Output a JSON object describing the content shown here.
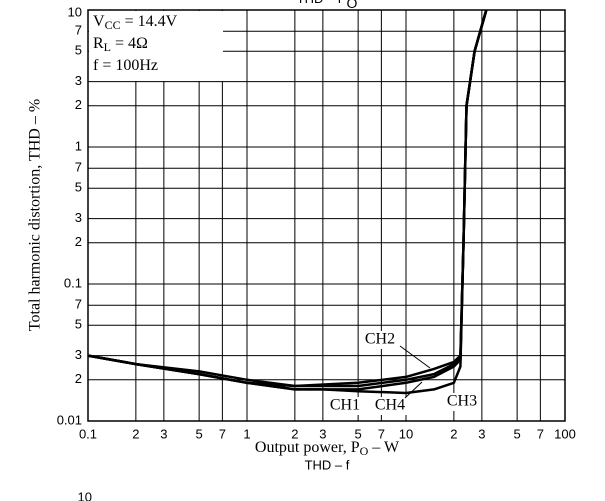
{
  "chart_data": [
    {
      "type": "line",
      "title": {
        "main": "THD – P",
        "sub": "O"
      },
      "xlabel": {
        "main": "Output power, P",
        "sub": "O",
        "rest": " – W"
      },
      "ylabel": "Total harmonic distortion, THD  –  %",
      "log_x": true,
      "log_y": true,
      "grid": true,
      "xlim": [
        0.1,
        100
      ],
      "ylim": [
        0.01,
        10
      ],
      "xticks": [
        0.1,
        {
          "value": 0.2,
          "label": "2"
        },
        {
          "value": 0.3,
          "label": "3"
        },
        {
          "value": 0.5,
          "label": "5"
        },
        {
          "value": 0.7,
          "label": "7"
        },
        1,
        {
          "value": 2,
          "label": "2"
        },
        {
          "value": 3,
          "label": "3"
        },
        {
          "value": 5,
          "label": "5"
        },
        {
          "value": 7,
          "label": "7"
        },
        10,
        {
          "value": 20,
          "label": "2"
        },
        {
          "value": 30,
          "label": "3"
        },
        {
          "value": 50,
          "label": "5"
        },
        {
          "value": 70,
          "label": "7"
        },
        100
      ],
      "yticks": [
        0.01,
        {
          "value": 0.02,
          "label": "2"
        },
        {
          "value": 0.03,
          "label": "3"
        },
        {
          "value": 0.05,
          "label": "5"
        },
        {
          "value": 0.07,
          "label": "7"
        },
        0.1,
        {
          "value": 0.2,
          "label": "2"
        },
        {
          "value": 0.3,
          "label": "3"
        },
        {
          "value": 0.5,
          "label": "5"
        },
        {
          "value": 0.7,
          "label": "7"
        },
        1,
        {
          "value": 2,
          "label": "2"
        },
        {
          "value": 3,
          "label": "3"
        },
        {
          "value": 5,
          "label": "5"
        },
        {
          "value": 7,
          "label": "7"
        },
        10
      ],
      "conditions": [
        {
          "main": "V",
          "sub": "CC",
          "rest": " = 14.4V"
        },
        {
          "main": "R",
          "sub": "L",
          "rest": " = 4Ω"
        },
        {
          "main": "f = 100Hz"
        }
      ],
      "series": [
        {
          "name": "CH1",
          "color": "#000000",
          "x": [
            0.1,
            0.2,
            0.5,
            1,
            2,
            3,
            5,
            10,
            15,
            20,
            22,
            23,
            24,
            27,
            32
          ],
          "values": [
            0.03,
            0.026,
            0.022,
            0.019,
            0.017,
            0.017,
            0.0165,
            0.016,
            0.017,
            0.019,
            0.025,
            0.2,
            2,
            5,
            10
          ]
        },
        {
          "name": "CH2",
          "color": "#000000",
          "x": [
            0.1,
            0.2,
            0.5,
            1,
            2,
            5,
            10,
            15,
            20,
            22,
            23,
            24,
            27,
            32
          ],
          "values": [
            0.03,
            0.026,
            0.023,
            0.02,
            0.018,
            0.019,
            0.021,
            0.024,
            0.027,
            0.03,
            0.2,
            2,
            5,
            10
          ]
        },
        {
          "name": "CH3",
          "color": "#000000",
          "x": [
            0.1,
            0.2,
            0.5,
            1,
            2,
            5,
            10,
            15,
            20,
            22,
            23,
            24,
            27,
            32
          ],
          "values": [
            0.03,
            0.026,
            0.022,
            0.019,
            0.017,
            0.017,
            0.019,
            0.021,
            0.025,
            0.028,
            0.2,
            2,
            5,
            10
          ]
        },
        {
          "name": "CH4",
          "color": "#000000",
          "x": [
            0.1,
            0.2,
            0.5,
            1,
            2,
            5,
            10,
            15,
            20,
            22,
            23,
            24,
            27,
            32
          ],
          "values": [
            0.03,
            0.026,
            0.022,
            0.019,
            0.018,
            0.018,
            0.02,
            0.022,
            0.026,
            0.029,
            0.2,
            2,
            5,
            10
          ]
        }
      ]
    },
    {
      "type": "line",
      "title": "THD – f",
      "yticks": [
        10
      ]
    }
  ]
}
